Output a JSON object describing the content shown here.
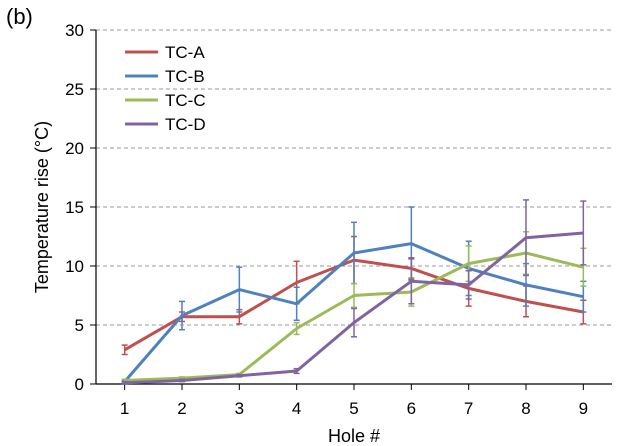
{
  "panel_label": "(b)",
  "chart_data": {
    "type": "line",
    "title": "",
    "xlabel": "Hole #",
    "ylabel": "Temperature rise (°C)",
    "x": [
      1,
      2,
      3,
      4,
      5,
      6,
      7,
      8,
      9
    ],
    "xticks": [
      "1",
      "2",
      "3",
      "4",
      "5",
      "6",
      "7",
      "8",
      "9"
    ],
    "xlim": [
      0.5,
      9.5
    ],
    "ylim": [
      0,
      30
    ],
    "yticks": [
      0,
      5,
      10,
      15,
      20,
      25,
      30
    ],
    "grid": "horizontal-dashed",
    "legend": "top-left",
    "series": [
      {
        "name": "TC-A",
        "color": "#c0504d",
        "values": [
          2.9,
          5.7,
          5.7,
          8.6,
          10.5,
          9.8,
          8.1,
          7.0,
          6.1
        ],
        "errors": [
          0.4,
          0.4,
          0.6,
          1.8,
          2.0,
          0.9,
          1.5,
          1.3,
          1.0
        ]
      },
      {
        "name": "TC-B",
        "color": "#4f81bd",
        "values": [
          0.2,
          5.8,
          8.0,
          6.8,
          11.1,
          11.9,
          9.8,
          8.4,
          7.4
        ],
        "errors": [
          0.1,
          1.2,
          1.9,
          1.4,
          2.6,
          3.1,
          2.3,
          1.8,
          1.3
        ]
      },
      {
        "name": "TC-C",
        "color": "#9bbb59",
        "values": [
          0.3,
          0.5,
          0.8,
          4.7,
          7.5,
          7.8,
          10.2,
          11.1,
          9.9
        ],
        "errors": [
          0.1,
          0.1,
          0.1,
          0.5,
          1.0,
          1.2,
          1.5,
          1.8,
          1.6
        ]
      },
      {
        "name": "TC-D",
        "color": "#8064a2",
        "values": [
          0.1,
          0.3,
          0.7,
          1.1,
          5.2,
          8.7,
          8.4,
          12.4,
          12.8
        ],
        "errors": [
          0.1,
          0.1,
          0.1,
          0.2,
          1.2,
          1.9,
          1.2,
          3.2,
          2.7
        ]
      }
    ]
  }
}
